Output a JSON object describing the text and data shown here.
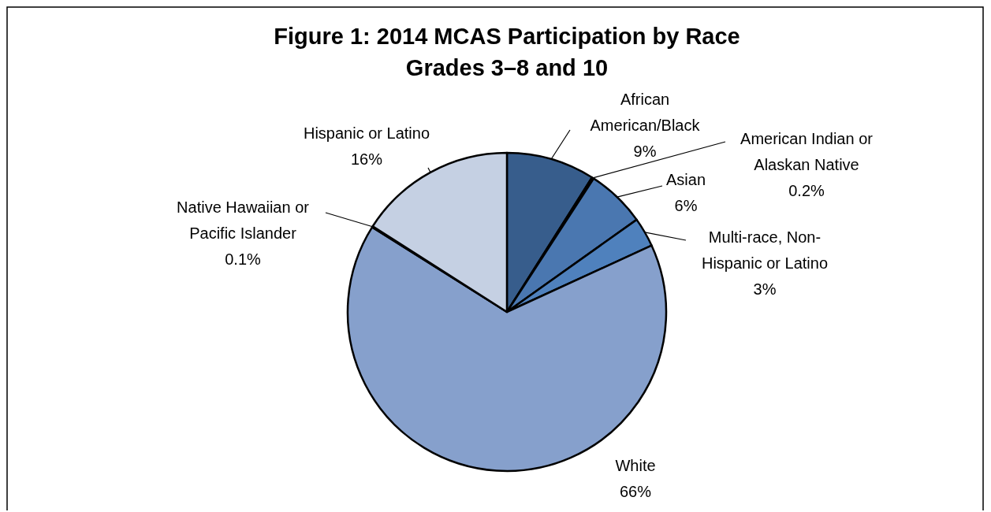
{
  "chart_data": {
    "type": "pie",
    "title": "Figure 1: 2014 MCAS Participation by Race",
    "subtitle": "Grades 3–8 and 10",
    "categories": [
      "African American/Black",
      "American Indian or Alaskan Native",
      "Asian",
      "Multi-race, Non-Hispanic or Latino",
      "White",
      "Native Hawaiian or Pacific Islander",
      "Hispanic or Latino"
    ],
    "values": [
      9,
      0.2,
      6,
      3,
      66,
      0.1,
      16
    ],
    "colors": [
      "#375d8c",
      "#2a4a70",
      "#4a77b0",
      "#4f81bd",
      "#86a0cc",
      "#3a5f8f",
      "#c5d0e3"
    ],
    "value_labels": [
      "9%",
      "0.2%",
      "6%",
      "3%",
      "66%",
      "0.1%",
      "16%"
    ]
  }
}
